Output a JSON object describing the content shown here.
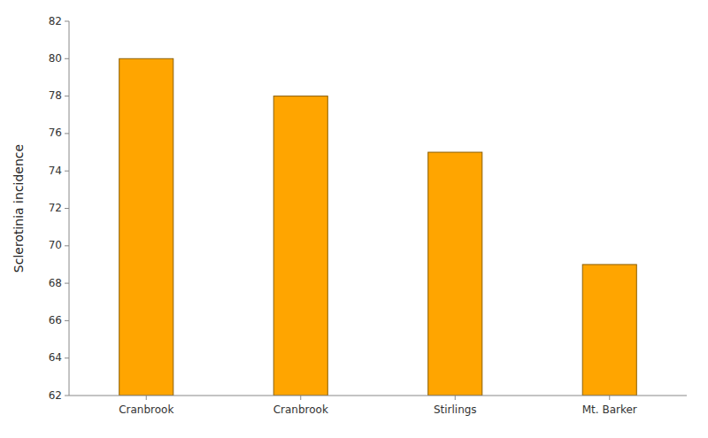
{
  "chart_data": {
    "type": "bar",
    "categories": [
      "Cranbrook",
      "Cranbrook",
      "Stirlings",
      "Mt. Barker"
    ],
    "values": [
      80.0,
      78.0,
      75.0,
      69.0
    ],
    "color": "#FFA500",
    "ylabel": "Sclerotinia incidence",
    "ylim": [
      62,
      82
    ],
    "yticks": [
      62,
      64,
      66,
      68,
      70,
      72,
      74,
      76,
      78,
      80,
      82
    ],
    "grid": false
  }
}
